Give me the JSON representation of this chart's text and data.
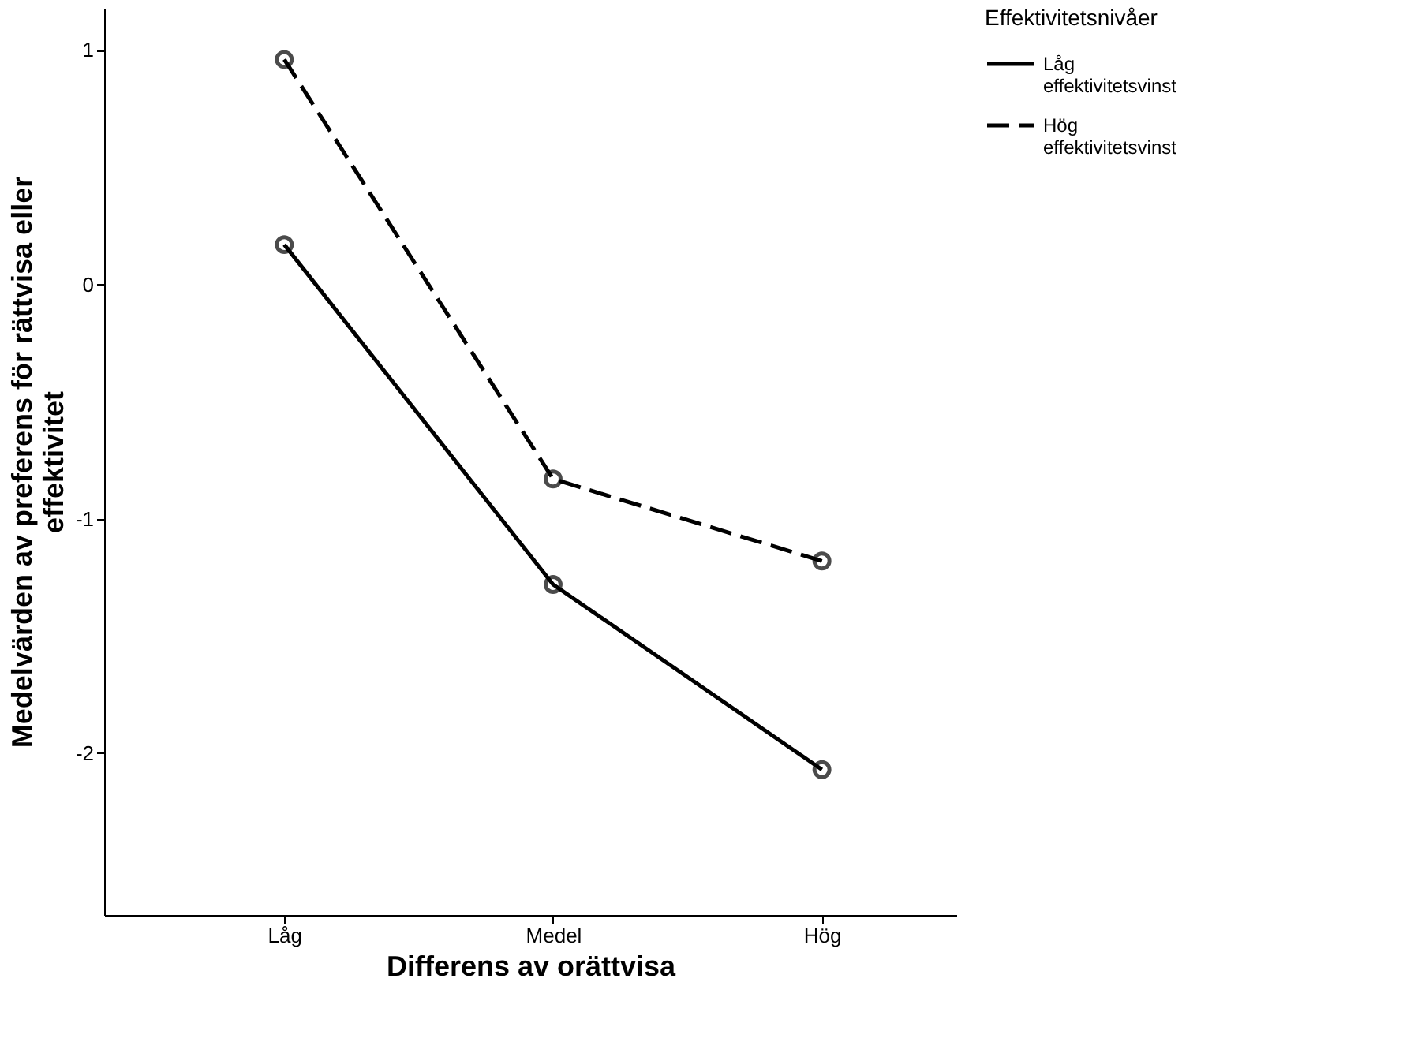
{
  "chart_data": {
    "type": "line",
    "xlabel": "Differens av orättvisa",
    "ylabel": "Medelvärden av preferens för rättvisa eller effektivitet",
    "legend_title": "Effektivitetsnivåer",
    "categories": [
      "Låg",
      "Medel",
      "Hög"
    ],
    "series": [
      {
        "name": "Låg effektivitetsvinst",
        "color": "#000000",
        "line_style": "solid",
        "values": [
          0.17,
          -1.28,
          -2.07
        ]
      },
      {
        "name": "Hög effektivitetsvinst",
        "color": "#000000",
        "line_style": "dashed",
        "values": [
          0.96,
          -0.83,
          -1.18
        ]
      }
    ],
    "ylim": [
      -2.69,
      1.18
    ],
    "yticks": [
      -2,
      -1,
      0,
      1
    ],
    "grid": false,
    "legend": "top right",
    "marker": "circle"
  }
}
